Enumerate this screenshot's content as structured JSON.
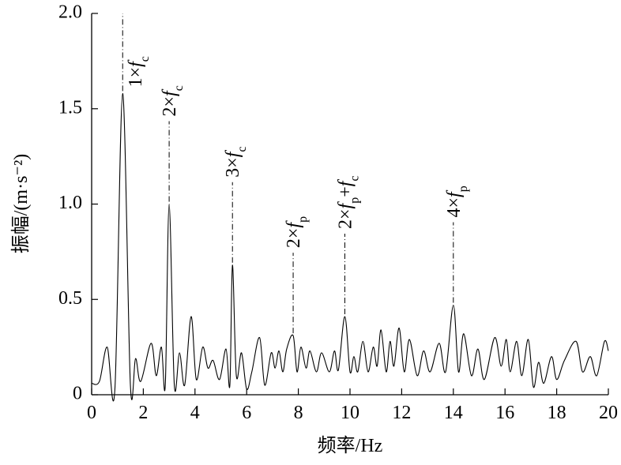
{
  "chart_data": {
    "type": "line",
    "color": "#000000",
    "x_label": "频率/Hz",
    "y_label": "振幅/(m·s⁻²)",
    "xlim": [
      0,
      20
    ],
    "ylim": [
      0,
      2.0
    ],
    "xticks": [
      0,
      2,
      4,
      6,
      8,
      10,
      12,
      14,
      16,
      18,
      20
    ],
    "yticks": [
      0,
      0.5,
      {
        "value": 1.0,
        "label": "1.0"
      },
      1.5,
      {
        "value": 2.0,
        "label": "2.0"
      }
    ],
    "x": [
      0,
      0.3,
      0.6,
      0.9,
      1.2,
      1.5,
      1.7,
      1.9,
      2.3,
      2.5,
      2.7,
      2.85,
      3.0,
      3.2,
      3.4,
      3.6,
      3.85,
      4.05,
      4.3,
      4.5,
      4.7,
      4.95,
      5.2,
      5.35,
      5.45,
      5.6,
      5.8,
      6.0,
      6.2,
      6.5,
      6.7,
      6.95,
      7.1,
      7.25,
      7.4,
      7.55,
      7.8,
      7.95,
      8.1,
      8.3,
      8.45,
      8.7,
      8.9,
      9.2,
      9.4,
      9.55,
      9.8,
      10.0,
      10.15,
      10.3,
      10.5,
      10.7,
      10.9,
      11.05,
      11.2,
      11.4,
      11.55,
      11.7,
      11.9,
      12.1,
      12.3,
      12.6,
      12.85,
      13.1,
      13.45,
      13.7,
      14.0,
      14.2,
      14.4,
      14.7,
      14.95,
      15.2,
      15.6,
      15.85,
      16.05,
      16.2,
      16.45,
      16.65,
      16.9,
      17.1,
      17.3,
      17.5,
      17.8,
      18.0,
      18.3,
      18.75,
      19.0,
      19.3,
      19.55,
      19.85,
      20.0
    ],
    "values": [
      0.06,
      0.07,
      0.25,
      0.03,
      1.58,
      0.05,
      0.19,
      0.07,
      0.27,
      0.1,
      0.25,
      0.05,
      1.0,
      0.05,
      0.22,
      0.05,
      0.41,
      0.08,
      0.25,
      0.14,
      0.18,
      0.08,
      0.24,
      0.05,
      0.68,
      0.1,
      0.22,
      0.03,
      0.12,
      0.3,
      0.05,
      0.22,
      0.14,
      0.23,
      0.12,
      0.24,
      0.31,
      0.12,
      0.25,
      0.14,
      0.23,
      0.12,
      0.22,
      0.12,
      0.23,
      0.13,
      0.41,
      0.12,
      0.2,
      0.12,
      0.28,
      0.12,
      0.25,
      0.15,
      0.34,
      0.12,
      0.28,
      0.15,
      0.35,
      0.12,
      0.29,
      0.1,
      0.23,
      0.12,
      0.27,
      0.12,
      0.47,
      0.12,
      0.32,
      0.1,
      0.24,
      0.08,
      0.3,
      0.15,
      0.29,
      0.12,
      0.28,
      0.1,
      0.29,
      0.04,
      0.17,
      0.06,
      0.2,
      0.08,
      0.18,
      0.28,
      0.12,
      0.2,
      0.1,
      0.28,
      0.23
    ],
    "annotations": [
      {
        "x": 1.2,
        "y": 1.58,
        "label": [
          {
            "text": "1×",
            "style": "normal"
          },
          {
            "text": "f",
            "style": "italic"
          },
          {
            "text": "c",
            "style": "sub"
          }
        ]
      },
      {
        "x": 3.0,
        "y": 1.0,
        "label": [
          {
            "text": "2×",
            "style": "normal"
          },
          {
            "text": "f",
            "style": "italic"
          },
          {
            "text": "c",
            "style": "sub"
          }
        ]
      },
      {
        "x": 5.45,
        "y": 0.68,
        "label": [
          {
            "text": "3×",
            "style": "normal"
          },
          {
            "text": "f",
            "style": "italic"
          },
          {
            "text": "c",
            "style": "sub"
          }
        ]
      },
      {
        "x": 7.8,
        "y": 0.31,
        "label": [
          {
            "text": "2×",
            "style": "normal"
          },
          {
            "text": "f",
            "style": "italic"
          },
          {
            "text": "p",
            "style": "sub"
          }
        ]
      },
      {
        "x": 9.8,
        "y": 0.41,
        "label": [
          {
            "text": "2×",
            "style": "normal"
          },
          {
            "text": "f",
            "style": "italic"
          },
          {
            "text": "p",
            "style": "sub"
          },
          {
            "text": "+",
            "style": "normal"
          },
          {
            "text": "f",
            "style": "italic"
          },
          {
            "text": "c",
            "style": "sub"
          }
        ]
      },
      {
        "x": 14.0,
        "y": 0.47,
        "label": [
          {
            "text": "4×",
            "style": "normal"
          },
          {
            "text": "f",
            "style": "italic"
          },
          {
            "text": "p",
            "style": "sub"
          }
        ]
      }
    ]
  }
}
